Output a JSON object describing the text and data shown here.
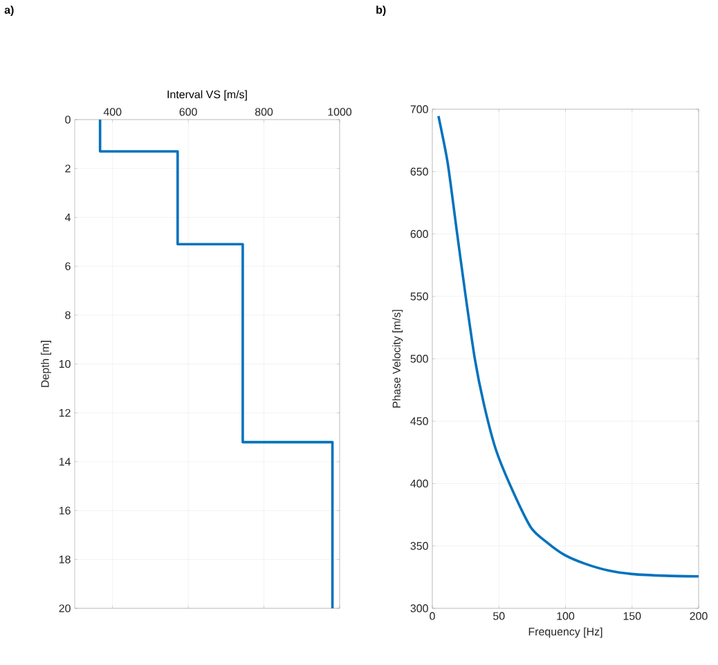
{
  "chart_data": [
    {
      "type": "line",
      "title": "a)",
      "xlabel": "Interval VS [m/s]",
      "ylabel": "Depth [m]",
      "color": "#0072bd",
      "x": [
        367,
        367,
        572,
        572,
        744,
        744,
        981,
        981
      ],
      "values": [
        0,
        1.3,
        1.3,
        5.1,
        5.1,
        13.2,
        13.2,
        20
      ],
      "xlim": [
        300,
        1000
      ],
      "xticks": [
        400,
        600,
        800,
        1000
      ],
      "ylim": [
        20,
        0
      ],
      "yticks": [
        0,
        2,
        4,
        6,
        8,
        10,
        12,
        14,
        16,
        18,
        20
      ],
      "grid": true
    },
    {
      "type": "line",
      "title": "b)",
      "xlabel": "Frequency [Hz]",
      "ylabel": "Phase Velocity [m/s]",
      "color": "#0072bd",
      "x": [
        4.6,
        11.6,
        18.5,
        24.8,
        31.9,
        38.7,
        47.5,
        58.9,
        74.1,
        86.7,
        99.4,
        114.5,
        132.2,
        149.9,
        175.2,
        200
      ],
      "values": [
        694.5,
        656.5,
        601.4,
        551.9,
        500.1,
        463.8,
        428,
        397.7,
        364.7,
        352.3,
        342.7,
        335.8,
        330.3,
        327.5,
        326.1,
        325.6
      ],
      "xlim": [
        0,
        200
      ],
      "xticks": [
        0,
        50,
        100,
        150,
        200
      ],
      "ylim": [
        300,
        700
      ],
      "yticks": [
        300,
        350,
        400,
        450,
        500,
        550,
        600,
        650,
        700
      ],
      "grid": true
    }
  ]
}
